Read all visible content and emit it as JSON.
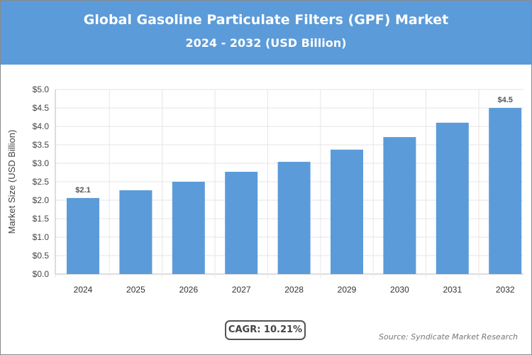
{
  "chart_data": {
    "type": "bar",
    "title": "Global Gasoline Particulate Filters (GPF) Market",
    "subtitle": "2024 - 2032 (USD Billion)",
    "xlabel": "",
    "ylabel": "Market Size (USD Billion)",
    "categories": [
      "2024",
      "2025",
      "2026",
      "2027",
      "2028",
      "2029",
      "2030",
      "2031",
      "2032"
    ],
    "values": [
      2.06,
      2.27,
      2.5,
      2.77,
      3.04,
      3.37,
      3.71,
      4.1,
      4.5
    ],
    "data_labels": {
      "0": "$2.1",
      "8": "$4.5"
    },
    "ylim": [
      0,
      5
    ],
    "yticks": [
      "$0.0",
      "$0.5",
      "$1.0",
      "$1.5",
      "$2.0",
      "$2.5",
      "$3.0",
      "$3.5",
      "$4.0",
      "$4.5",
      "$5.0"
    ],
    "grid": true,
    "bar_color": "#5b9bd9",
    "header_color": "#5b9bd9"
  },
  "cagr": "CAGR: 10.21%",
  "source": "Source: Syndicate Market Research"
}
